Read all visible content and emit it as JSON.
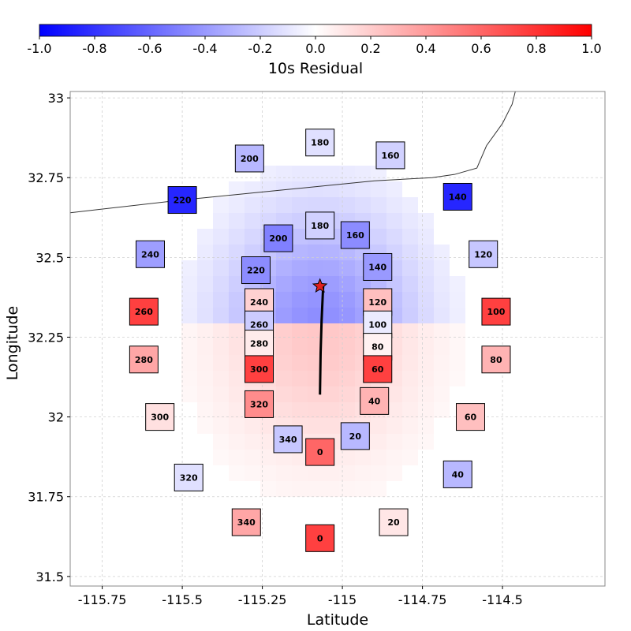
{
  "colorbar": {
    "label": "10s Residual",
    "ticks": [
      -1.0,
      -0.8,
      -0.6,
      -0.4,
      -0.2,
      0.0,
      0.2,
      0.4,
      0.6,
      0.8,
      1.0
    ],
    "tick_labels": [
      "-1.0",
      "-0.8",
      "-0.6",
      "-0.4",
      "-0.2",
      "0.0",
      "0.2",
      "0.4",
      "0.6",
      "0.8",
      "1.0"
    ],
    "low_color": "#0000ff",
    "mid_color": "#ffffff",
    "high_color": "#ff0000"
  },
  "chart_data": {
    "type": "heatmap",
    "xlabel": "Latitude",
    "ylabel": "Longitude",
    "xlim": [
      -115.85,
      -114.18
    ],
    "ylim": [
      31.47,
      33.02
    ],
    "xticks": [
      -115.75,
      -115.5,
      -115.25,
      -115,
      -114.75,
      -114.5
    ],
    "xtick_labels": [
      "-115.75",
      "-115.5",
      "-115.25",
      "-115",
      "-114.75",
      "-114.5"
    ],
    "yticks": [
      31.5,
      31.75,
      32,
      32.25,
      32.5,
      32.75,
      33
    ],
    "ytick_labels": [
      "31.5",
      "31.75",
      "32",
      "32.25",
      "32.5",
      "32.75",
      "33"
    ],
    "grid": true,
    "epicenter": {
      "lon": -115.07,
      "lat": 32.41
    },
    "rupture_trace": [
      [
        -115.06,
        32.41
      ],
      [
        -115.065,
        32.3
      ],
      [
        -115.068,
        32.2
      ],
      [
        -115.07,
        32.07
      ]
    ],
    "border": [
      [
        -115.85,
        32.64
      ],
      [
        -115.5,
        32.68
      ],
      [
        -115.2,
        32.71
      ],
      [
        -114.9,
        32.74
      ],
      [
        -114.72,
        32.75
      ],
      [
        -114.65,
        32.76
      ],
      [
        -114.58,
        32.78
      ],
      [
        -114.55,
        32.85
      ],
      [
        -114.5,
        32.92
      ],
      [
        -114.47,
        32.98
      ],
      [
        -114.46,
        33.02
      ]
    ],
    "stations": [
      {
        "label": "180",
        "lon": -115.07,
        "lat": 32.86,
        "value": -0.12
      },
      {
        "label": "160",
        "lon": -114.85,
        "lat": 32.82,
        "value": -0.18
      },
      {
        "label": "200",
        "lon": -115.29,
        "lat": 32.81,
        "value": -0.28
      },
      {
        "label": "220",
        "lon": -115.5,
        "lat": 32.68,
        "value": -0.85
      },
      {
        "label": "140",
        "lon": -114.64,
        "lat": 32.69,
        "value": -0.85
      },
      {
        "label": "180",
        "lon": -115.07,
        "lat": 32.6,
        "value": -0.18
      },
      {
        "label": "200",
        "lon": -115.2,
        "lat": 32.56,
        "value": -0.5
      },
      {
        "label": "160",
        "lon": -114.96,
        "lat": 32.57,
        "value": -0.45
      },
      {
        "label": "240",
        "lon": -115.6,
        "lat": 32.51,
        "value": -0.38
      },
      {
        "label": "120",
        "lon": -114.56,
        "lat": 32.51,
        "value": -0.22
      },
      {
        "label": "220",
        "lon": -115.27,
        "lat": 32.46,
        "value": -0.45
      },
      {
        "label": "140",
        "lon": -114.89,
        "lat": 32.47,
        "value": -0.4
      },
      {
        "label": "240",
        "lon": -115.26,
        "lat": 32.36,
        "value": 0.18
      },
      {
        "label": "120",
        "lon": -114.89,
        "lat": 32.36,
        "value": 0.25
      },
      {
        "label": "260",
        "lon": -115.62,
        "lat": 32.33,
        "value": 0.75
      },
      {
        "label": "100",
        "lon": -114.52,
        "lat": 32.33,
        "value": 0.75
      },
      {
        "label": "260",
        "lon": -115.26,
        "lat": 32.29,
        "value": -0.2
      },
      {
        "label": "100",
        "lon": -114.89,
        "lat": 32.29,
        "value": -0.08
      },
      {
        "label": "280",
        "lon": -115.26,
        "lat": 32.23,
        "value": 0.08
      },
      {
        "label": "80",
        "lon": -114.89,
        "lat": 32.22,
        "value": 0.05
      },
      {
        "label": "280",
        "lon": -115.62,
        "lat": 32.18,
        "value": 0.35
      },
      {
        "label": "80",
        "lon": -114.52,
        "lat": 32.18,
        "value": 0.3
      },
      {
        "label": "300",
        "lon": -115.26,
        "lat": 32.15,
        "value": 0.75
      },
      {
        "label": "60",
        "lon": -114.89,
        "lat": 32.15,
        "value": 0.75
      },
      {
        "label": "320",
        "lon": -115.26,
        "lat": 32.04,
        "value": 0.45
      },
      {
        "label": "40",
        "lon": -114.9,
        "lat": 32.05,
        "value": 0.3
      },
      {
        "label": "300",
        "lon": -115.57,
        "lat": 32.0,
        "value": 0.12
      },
      {
        "label": "60",
        "lon": -114.6,
        "lat": 32.0,
        "value": 0.25
      },
      {
        "label": "340",
        "lon": -115.17,
        "lat": 31.93,
        "value": -0.22
      },
      {
        "label": "20",
        "lon": -114.96,
        "lat": 31.94,
        "value": -0.28
      },
      {
        "label": "0",
        "lon": -115.07,
        "lat": 31.89,
        "value": 0.6
      },
      {
        "label": "320",
        "lon": -115.48,
        "lat": 31.81,
        "value": -0.12
      },
      {
        "label": "40",
        "lon": -114.64,
        "lat": 31.82,
        "value": -0.28
      },
      {
        "label": "340",
        "lon": -115.3,
        "lat": 31.67,
        "value": 0.35
      },
      {
        "label": "20",
        "lon": -114.84,
        "lat": 31.67,
        "value": 0.1
      },
      {
        "label": "0",
        "lon": -115.07,
        "lat": 31.62,
        "value": 0.75
      }
    ]
  }
}
